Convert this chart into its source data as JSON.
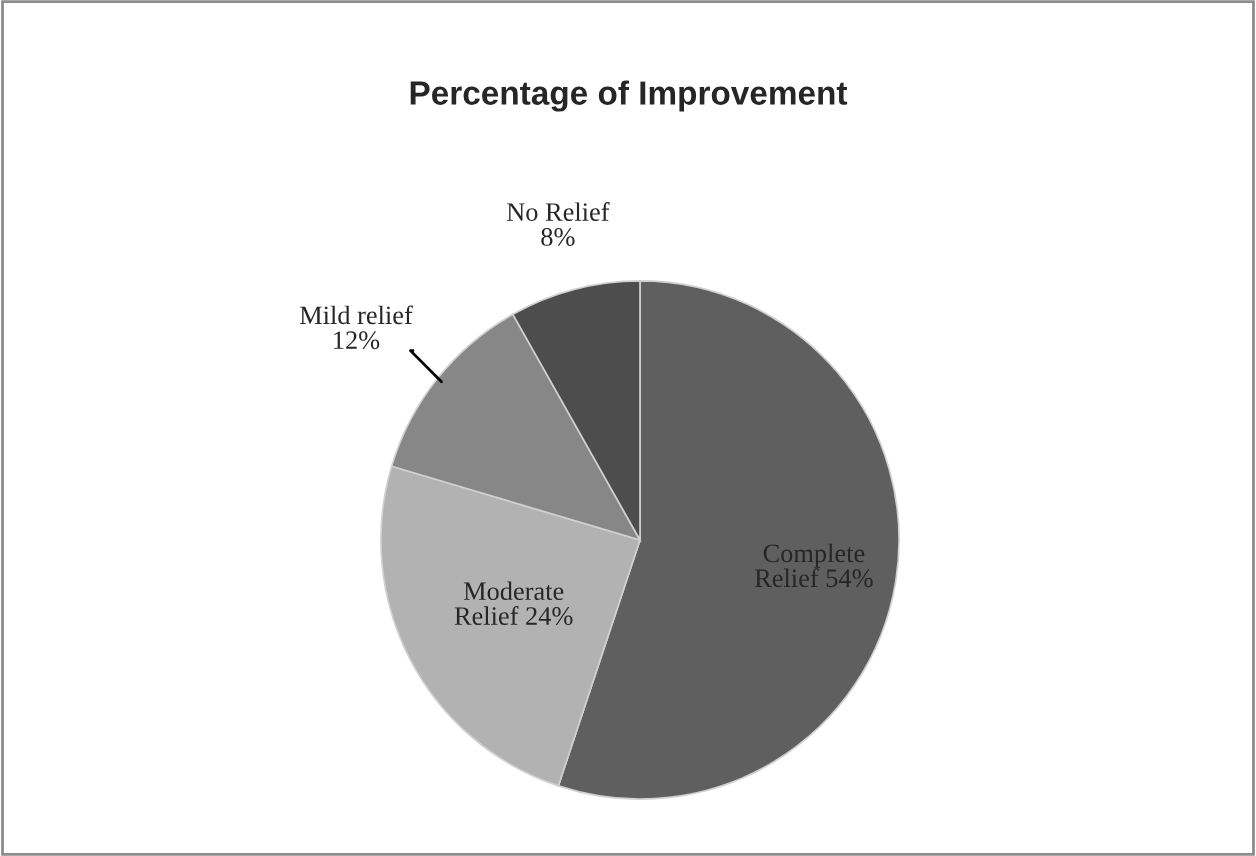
{
  "chart_data": {
    "type": "pie",
    "title": "Percentage of Improvement",
    "categories": [
      "Complete Relief",
      "Moderate Relief",
      "Mild relief",
      "No Relief"
    ],
    "values": [
      54,
      24,
      12,
      8
    ],
    "value_labels": [
      "54%",
      "24%",
      "12%",
      "8%"
    ],
    "colors": [
      "#5f5f5f",
      "#b2b2b2",
      "#878787",
      "#4d4d4d"
    ]
  }
}
